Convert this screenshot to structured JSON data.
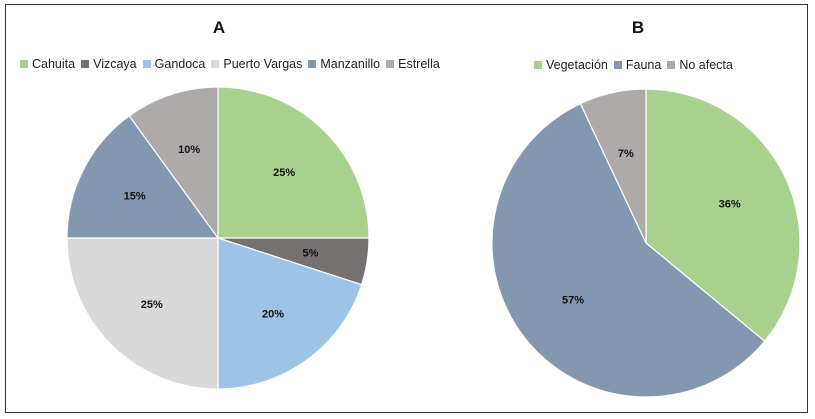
{
  "chart_data": [
    {
      "type": "pie",
      "title": "A",
      "categories": [
        "Cahuita",
        "Vizcaya",
        "Gandoca",
        "Puerto Vargas",
        "Manzanillo",
        "Estrella"
      ],
      "values": [
        25,
        5,
        20,
        25,
        15,
        10
      ],
      "labels": [
        "25%",
        "5%",
        "20%",
        "25%",
        "15%",
        "10%"
      ],
      "colors": [
        "#a9d18e",
        "#767171",
        "#9dc3e6",
        "#d9d9d9",
        "#8497b0",
        "#aeaaaa"
      ],
      "legend_position": "top"
    },
    {
      "type": "pie",
      "title": "B",
      "categories": [
        "Vegetación",
        "Fauna",
        "No afecta"
      ],
      "values": [
        36,
        57,
        7
      ],
      "labels": [
        "36%",
        "57%",
        "7%"
      ],
      "colors": [
        "#a9d18e",
        "#8497b0",
        "#aeaaaa"
      ],
      "legend_position": "top"
    }
  ]
}
